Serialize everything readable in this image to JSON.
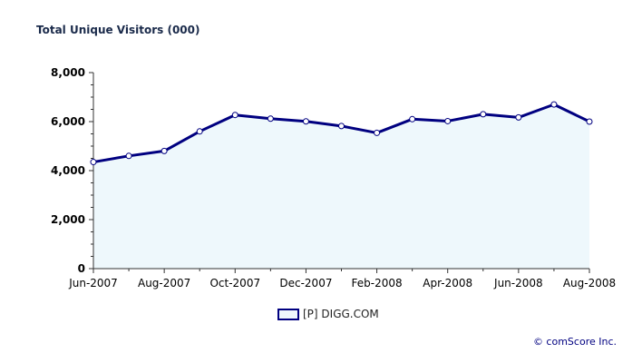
{
  "title": "Total Unique Visitors (000)",
  "credit": "© comScore Inc.",
  "legend_label": "[P] DIGG.COM",
  "colors": {
    "line": "#000080",
    "fill": "#eef8fc",
    "axis": "#333333"
  },
  "chart_data": {
    "type": "area",
    "title": "Total Unique Visitors (000)",
    "x": [
      "Jun-2007",
      "Jul-2007",
      "Aug-2007",
      "Sep-2007",
      "Oct-2007",
      "Nov-2007",
      "Dec-2007",
      "Jan-2008",
      "Feb-2008",
      "Mar-2008",
      "Apr-2008",
      "May-2008",
      "Jun-2008",
      "Jul-2008",
      "Aug-2008"
    ],
    "xtick_labels": [
      "Jun-2007",
      "Aug-2007",
      "Oct-2007",
      "Dec-2007",
      "Feb-2008",
      "Apr-2008",
      "Jun-2008",
      "Aug-2008"
    ],
    "series": [
      {
        "name": "[P] DIGG.COM",
        "values": [
          4350,
          4600,
          4800,
          5600,
          6270,
          6120,
          6010,
          5820,
          5540,
          6100,
          6020,
          6300,
          6170,
          6700,
          6000
        ]
      }
    ],
    "ylim": [
      0,
      8000
    ],
    "yticks": [
      0,
      2000,
      4000,
      6000,
      8000
    ],
    "ytick_labels": [
      "0",
      "2,000",
      "4,000",
      "6,000",
      "8,000"
    ],
    "grid": false,
    "legend": "bottom-center"
  }
}
